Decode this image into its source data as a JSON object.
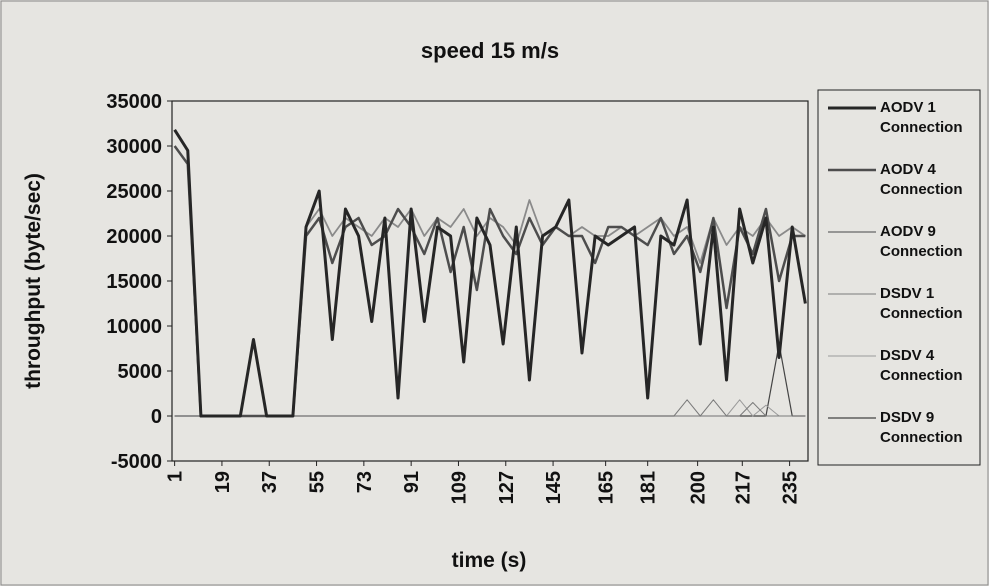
{
  "chart_data": {
    "type": "line",
    "title": "speed 15 m/s",
    "x_label": "time (s)",
    "y_label": "throughput (byte/sec)",
    "x": [
      1,
      6,
      11,
      16,
      21,
      26,
      31,
      36,
      41,
      46,
      51,
      56,
      61,
      66,
      71,
      76,
      81,
      86,
      91,
      96,
      101,
      106,
      111,
      116,
      121,
      126,
      131,
      136,
      141,
      146,
      151,
      156,
      161,
      166,
      171,
      176,
      181,
      186,
      191,
      196,
      201,
      206,
      211,
      216,
      221,
      226,
      231,
      236,
      241
    ],
    "series": [
      {
        "name": "AODV 1 Connection",
        "color": "#262626",
        "values": [
          31800,
          29500,
          0,
          0,
          0,
          0,
          8500,
          0,
          0,
          0,
          21000,
          25000,
          8500,
          23000,
          20000,
          10500,
          22000,
          2000,
          23000,
          10500,
          21000,
          20000,
          6000,
          22000,
          19000,
          8000,
          21000,
          4000,
          20000,
          21000,
          24000,
          7000,
          20000,
          19000,
          20000,
          21000,
          2000,
          20000,
          19000,
          24000,
          8000,
          21000,
          4000,
          23000,
          17000,
          22000,
          6500,
          21000,
          12500
        ]
      },
      {
        "name": "AODV 4 Connection",
        "color": "#4d4d4d",
        "values": [
          30000,
          28000,
          0,
          0,
          0,
          0,
          0,
          0,
          0,
          0,
          20000,
          22000,
          17000,
          21000,
          22000,
          19000,
          20000,
          23000,
          21000,
          18000,
          22000,
          16000,
          21000,
          14000,
          23000,
          20000,
          18000,
          22000,
          19000,
          21000,
          20000,
          20000,
          17000,
          21000,
          21000,
          20000,
          19000,
          22000,
          18000,
          20000,
          16000,
          22000,
          12000,
          21000,
          18000,
          23000,
          15000,
          20000,
          20000
        ]
      },
      {
        "name": "AODV 9 Connection",
        "color": "#8a8a8a",
        "values": [
          0,
          0,
          0,
          0,
          0,
          0,
          0,
          0,
          0,
          0,
          21000,
          23000,
          20000,
          22000,
          21000,
          20000,
          22000,
          21000,
          23000,
          20000,
          22000,
          21000,
          23000,
          20000,
          22000,
          21000,
          19000,
          24000,
          20000,
          21000,
          20000,
          21000,
          20000,
          20000,
          21000,
          20000,
          21000,
          22000,
          20000,
          21000,
          17000,
          22000,
          19000,
          21000,
          20000,
          22000,
          20000,
          21000,
          20000
        ]
      },
      {
        "name": "DSDV 1 Connection",
        "color": "#7a7a7a",
        "values": [
          0,
          0,
          0,
          0,
          0,
          0,
          0,
          0,
          0,
          0,
          0,
          0,
          0,
          0,
          0,
          0,
          0,
          0,
          0,
          0,
          0,
          0,
          0,
          0,
          0,
          0,
          0,
          0,
          0,
          0,
          0,
          0,
          0,
          0,
          0,
          0,
          0,
          0,
          0,
          1800,
          0,
          1800,
          0,
          0,
          1500,
          0,
          0,
          0,
          0
        ]
      },
      {
        "name": "DSDV 4 Connection",
        "color": "#9a9a9a",
        "values": [
          0,
          0,
          0,
          0,
          0,
          0,
          0,
          0,
          0,
          0,
          0,
          0,
          0,
          0,
          0,
          0,
          0,
          0,
          0,
          0,
          0,
          0,
          0,
          0,
          0,
          0,
          0,
          0,
          0,
          0,
          0,
          0,
          0,
          0,
          0,
          0,
          0,
          0,
          0,
          0,
          0,
          0,
          0,
          1800,
          0,
          1200,
          0,
          0,
          0
        ]
      },
      {
        "name": "DSDV 9 Connection",
        "color": "#444444",
        "values": [
          0,
          0,
          0,
          0,
          0,
          0,
          0,
          0,
          0,
          0,
          0,
          0,
          0,
          0,
          0,
          0,
          0,
          0,
          0,
          0,
          0,
          0,
          0,
          0,
          0,
          0,
          0,
          0,
          0,
          0,
          0,
          0,
          0,
          0,
          0,
          0,
          0,
          0,
          0,
          0,
          0,
          0,
          0,
          0,
          0,
          0,
          8000,
          0,
          0
        ]
      }
    ],
    "xlim": [
      0,
      242
    ],
    "xticks": [
      1,
      19,
      37,
      55,
      73,
      91,
      109,
      127,
      145,
      165,
      181,
      200,
      217,
      235
    ],
    "ylim": [
      -5000,
      35000
    ],
    "yticks": [
      -5000,
      0,
      5000,
      10000,
      15000,
      20000,
      25000,
      30000,
      35000
    ]
  }
}
